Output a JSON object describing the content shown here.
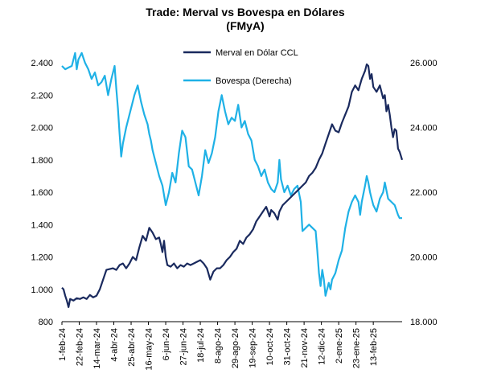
{
  "chart_data": {
    "type": "line",
    "title_line1": "Trade: Merval vs Bovespa en Dólares",
    "title_line2": "(FMyA)",
    "legend_position": "top-center",
    "grid": false,
    "x_tick_labels": [
      "1-feb-24",
      "22-feb-24",
      "14-mar-24",
      "4-abr-24",
      "25-abr-24",
      "16-may-24",
      "6-jun-24",
      "27-jun-24",
      "18-jul-24",
      "8-ago-24",
      "29-ago-24",
      "19-sep-24",
      "10-oct-24",
      "31-oct-24",
      "21-nov-24",
      "12-dic-24",
      "2-ene-25",
      "23-ene-25",
      "13-feb-25"
    ],
    "y_left": {
      "min": 800,
      "max": 2400,
      "ticks": [
        800,
        1000,
        1200,
        1400,
        1600,
        1800,
        2000,
        2200,
        2400
      ],
      "tick_labels": [
        "800",
        "1.000",
        "1.200",
        "1.400",
        "1.600",
        "1.800",
        "2.000",
        "2.200",
        "2.400"
      ]
    },
    "y_right": {
      "min": 18000,
      "max": 26000,
      "ticks": [
        18000,
        20000,
        22000,
        24000,
        26000
      ],
      "tick_labels": [
        "18.000",
        "20.000",
        "22.000",
        "24.000",
        "26.000"
      ]
    },
    "x_range_days": [
      0,
      413
    ],
    "series": [
      {
        "name": "Merval en Dólar CCL",
        "axis": "left",
        "color": "#1a2a5e",
        "points": [
          [
            0,
            1010
          ],
          [
            2,
            1000
          ],
          [
            4,
            960
          ],
          [
            6,
            930
          ],
          [
            8,
            890
          ],
          [
            10,
            940
          ],
          [
            14,
            930
          ],
          [
            18,
            945
          ],
          [
            22,
            940
          ],
          [
            26,
            950
          ],
          [
            30,
            940
          ],
          [
            34,
            965
          ],
          [
            38,
            950
          ],
          [
            42,
            960
          ],
          [
            46,
            1000
          ],
          [
            50,
            1060
          ],
          [
            54,
            1120
          ],
          [
            58,
            1125
          ],
          [
            62,
            1130
          ],
          [
            66,
            1120
          ],
          [
            70,
            1150
          ],
          [
            74,
            1160
          ],
          [
            78,
            1130
          ],
          [
            82,
            1160
          ],
          [
            86,
            1200
          ],
          [
            90,
            1180
          ],
          [
            94,
            1260
          ],
          [
            98,
            1330
          ],
          [
            102,
            1300
          ],
          [
            106,
            1380
          ],
          [
            110,
            1350
          ],
          [
            114,
            1310
          ],
          [
            118,
            1320
          ],
          [
            120,
            1280
          ],
          [
            122,
            1230
          ],
          [
            124,
            1300
          ],
          [
            126,
            1200
          ],
          [
            128,
            1150
          ],
          [
            132,
            1140
          ],
          [
            136,
            1160
          ],
          [
            140,
            1130
          ],
          [
            144,
            1150
          ],
          [
            148,
            1140
          ],
          [
            152,
            1160
          ],
          [
            156,
            1150
          ],
          [
            160,
            1160
          ],
          [
            164,
            1170
          ],
          [
            168,
            1180
          ],
          [
            172,
            1160
          ],
          [
            176,
            1130
          ],
          [
            180,
            1060
          ],
          [
            184,
            1110
          ],
          [
            188,
            1130
          ],
          [
            192,
            1130
          ],
          [
            196,
            1150
          ],
          [
            200,
            1180
          ],
          [
            204,
            1200
          ],
          [
            208,
            1230
          ],
          [
            212,
            1250
          ],
          [
            216,
            1300
          ],
          [
            220,
            1280
          ],
          [
            224,
            1320
          ],
          [
            228,
            1340
          ],
          [
            232,
            1370
          ],
          [
            236,
            1420
          ],
          [
            240,
            1450
          ],
          [
            244,
            1480
          ],
          [
            248,
            1510
          ],
          [
            250,
            1480
          ],
          [
            252,
            1450
          ],
          [
            254,
            1490
          ],
          [
            258,
            1470
          ],
          [
            262,
            1430
          ],
          [
            264,
            1480
          ],
          [
            268,
            1520
          ],
          [
            272,
            1540
          ],
          [
            276,
            1560
          ],
          [
            280,
            1580
          ],
          [
            284,
            1600
          ],
          [
            288,
            1620
          ],
          [
            292,
            1640
          ],
          [
            296,
            1660
          ],
          [
            300,
            1700
          ],
          [
            304,
            1720
          ],
          [
            308,
            1750
          ],
          [
            312,
            1800
          ],
          [
            316,
            1840
          ],
          [
            320,
            1900
          ],
          [
            324,
            1960
          ],
          [
            328,
            2020
          ],
          [
            332,
            1980
          ],
          [
            336,
            1970
          ],
          [
            340,
            2030
          ],
          [
            344,
            2080
          ],
          [
            348,
            2130
          ],
          [
            352,
            2220
          ],
          [
            356,
            2260
          ],
          [
            360,
            2230
          ],
          [
            364,
            2300
          ],
          [
            368,
            2350
          ],
          [
            370,
            2390
          ],
          [
            372,
            2380
          ],
          [
            374,
            2300
          ],
          [
            376,
            2330
          ],
          [
            378,
            2250
          ],
          [
            382,
            2220
          ],
          [
            386,
            2260
          ],
          [
            390,
            2180
          ],
          [
            392,
            2200
          ],
          [
            394,
            2100
          ],
          [
            396,
            2140
          ],
          [
            398,
            2080
          ],
          [
            400,
            2000
          ],
          [
            402,
            1940
          ],
          [
            404,
            1990
          ],
          [
            406,
            1980
          ],
          [
            408,
            1870
          ],
          [
            410,
            1850
          ],
          [
            413,
            1800
          ]
        ]
      },
      {
        "name": "Bovespa (Derecha)",
        "axis": "right",
        "color": "#1fb1e6",
        "points": [
          [
            0,
            25900
          ],
          [
            4,
            25800
          ],
          [
            8,
            25850
          ],
          [
            12,
            25900
          ],
          [
            16,
            26300
          ],
          [
            18,
            25800
          ],
          [
            20,
            26100
          ],
          [
            24,
            26300
          ],
          [
            28,
            26000
          ],
          [
            32,
            25800
          ],
          [
            36,
            25500
          ],
          [
            40,
            25700
          ],
          [
            44,
            25300
          ],
          [
            48,
            25400
          ],
          [
            52,
            25600
          ],
          [
            56,
            25000
          ],
          [
            60,
            25500
          ],
          [
            64,
            25900
          ],
          [
            66,
            25200
          ],
          [
            68,
            24600
          ],
          [
            70,
            23800
          ],
          [
            72,
            23100
          ],
          [
            74,
            23500
          ],
          [
            78,
            24000
          ],
          [
            82,
            24400
          ],
          [
            86,
            24800
          ],
          [
            88,
            25000
          ],
          [
            92,
            25300
          ],
          [
            96,
            24800
          ],
          [
            100,
            24400
          ],
          [
            104,
            24100
          ],
          [
            106,
            23800
          ],
          [
            108,
            23600
          ],
          [
            110,
            23300
          ],
          [
            114,
            22900
          ],
          [
            118,
            22500
          ],
          [
            122,
            22200
          ],
          [
            126,
            21600
          ],
          [
            130,
            22000
          ],
          [
            134,
            22600
          ],
          [
            138,
            22300
          ],
          [
            142,
            23200
          ],
          [
            146,
            23900
          ],
          [
            150,
            23700
          ],
          [
            154,
            22800
          ],
          [
            158,
            22700
          ],
          [
            162,
            22300
          ],
          [
            166,
            21900
          ],
          [
            170,
            22500
          ],
          [
            174,
            23300
          ],
          [
            178,
            22900
          ],
          [
            182,
            23200
          ],
          [
            186,
            23700
          ],
          [
            190,
            24500
          ],
          [
            194,
            25000
          ],
          [
            198,
            24500
          ],
          [
            202,
            24100
          ],
          [
            206,
            24300
          ],
          [
            210,
            24200
          ],
          [
            214,
            24700
          ],
          [
            218,
            24000
          ],
          [
            222,
            24200
          ],
          [
            226,
            23800
          ],
          [
            230,
            23600
          ],
          [
            234,
            23000
          ],
          [
            238,
            22800
          ],
          [
            242,
            22500
          ],
          [
            246,
            22700
          ],
          [
            250,
            22300
          ],
          [
            254,
            22100
          ],
          [
            258,
            22000
          ],
          [
            262,
            22300
          ],
          [
            264,
            23000
          ],
          [
            266,
            22400
          ],
          [
            270,
            22000
          ],
          [
            274,
            22200
          ],
          [
            278,
            21900
          ],
          [
            282,
            22100
          ],
          [
            286,
            22200
          ],
          [
            290,
            21700
          ],
          [
            292,
            20800
          ],
          [
            296,
            20900
          ],
          [
            300,
            21000
          ],
          [
            304,
            20900
          ],
          [
            308,
            20800
          ],
          [
            310,
            20200
          ],
          [
            312,
            19500
          ],
          [
            314,
            19100
          ],
          [
            316,
            19600
          ],
          [
            318,
            19300
          ],
          [
            320,
            18800
          ],
          [
            324,
            19200
          ],
          [
            326,
            19000
          ],
          [
            328,
            19300
          ],
          [
            332,
            19500
          ],
          [
            336,
            19900
          ],
          [
            340,
            20200
          ],
          [
            344,
            20900
          ],
          [
            348,
            21400
          ],
          [
            352,
            21700
          ],
          [
            356,
            21900
          ],
          [
            360,
            21700
          ],
          [
            362,
            21300
          ],
          [
            364,
            21700
          ],
          [
            368,
            22200
          ],
          [
            370,
            22500
          ],
          [
            372,
            22300
          ],
          [
            374,
            22000
          ],
          [
            376,
            21800
          ],
          [
            378,
            21600
          ],
          [
            382,
            21400
          ],
          [
            386,
            21800
          ],
          [
            390,
            22000
          ],
          [
            392,
            22300
          ],
          [
            396,
            21800
          ],
          [
            400,
            21700
          ],
          [
            404,
            21600
          ],
          [
            408,
            21300
          ],
          [
            410,
            21200
          ],
          [
            413,
            21200
          ]
        ]
      }
    ]
  }
}
